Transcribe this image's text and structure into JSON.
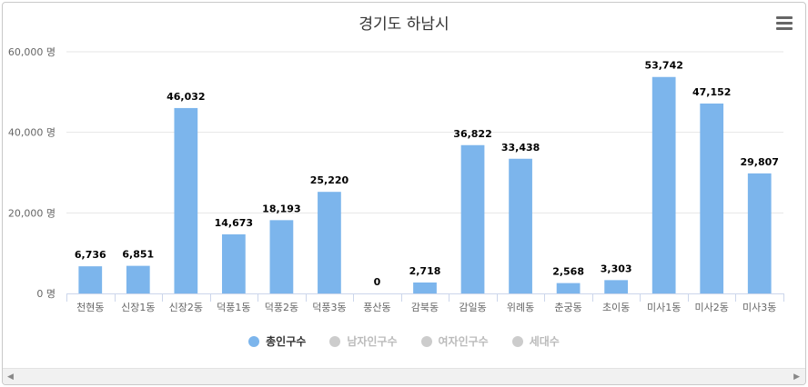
{
  "chart_data": {
    "type": "bar",
    "title": "경기도 하남시",
    "categories": [
      "천현동",
      "신장1동",
      "신장2동",
      "덕풍1동",
      "덕풍2동",
      "덕풍3동",
      "풍산동",
      "감북동",
      "감일동",
      "위례동",
      "춘궁동",
      "초이동",
      "미사1동",
      "미사2동",
      "미사3동"
    ],
    "series": [
      {
        "name": "총인구수",
        "values": [
          6736,
          6851,
          46032,
          14673,
          18193,
          25220,
          0,
          2718,
          36822,
          33438,
          2568,
          3303,
          53742,
          47152,
          29807
        ],
        "color": "#7cb5ec"
      }
    ],
    "data_labels": [
      "6,736",
      "6,851",
      "46,032",
      "14,673",
      "18,193",
      "25,220",
      "0",
      "2,718",
      "36,822",
      "33,438",
      "2,568",
      "3,303",
      "53,742",
      "47,152",
      "29,807"
    ],
    "ylim": [
      0,
      60000
    ],
    "yticks": [
      0,
      20000,
      40000,
      60000
    ],
    "ytick_labels": [
      "0 명",
      "20,000 명",
      "40,000 명",
      "60,000 명"
    ],
    "grid": true,
    "legend_position": "bottom"
  },
  "legend": [
    {
      "label": "총인구수",
      "color": "#7cb5ec",
      "active": true
    },
    {
      "label": "남자인구수",
      "color": "#cccccc",
      "active": false
    },
    {
      "label": "여자인구수",
      "color": "#cccccc",
      "active": false
    },
    {
      "label": "세대수",
      "color": "#cccccc",
      "active": false
    }
  ],
  "icons": {
    "menu": "hamburger-menu-icon",
    "scroll_left": "◀",
    "scroll_right": "▶"
  }
}
